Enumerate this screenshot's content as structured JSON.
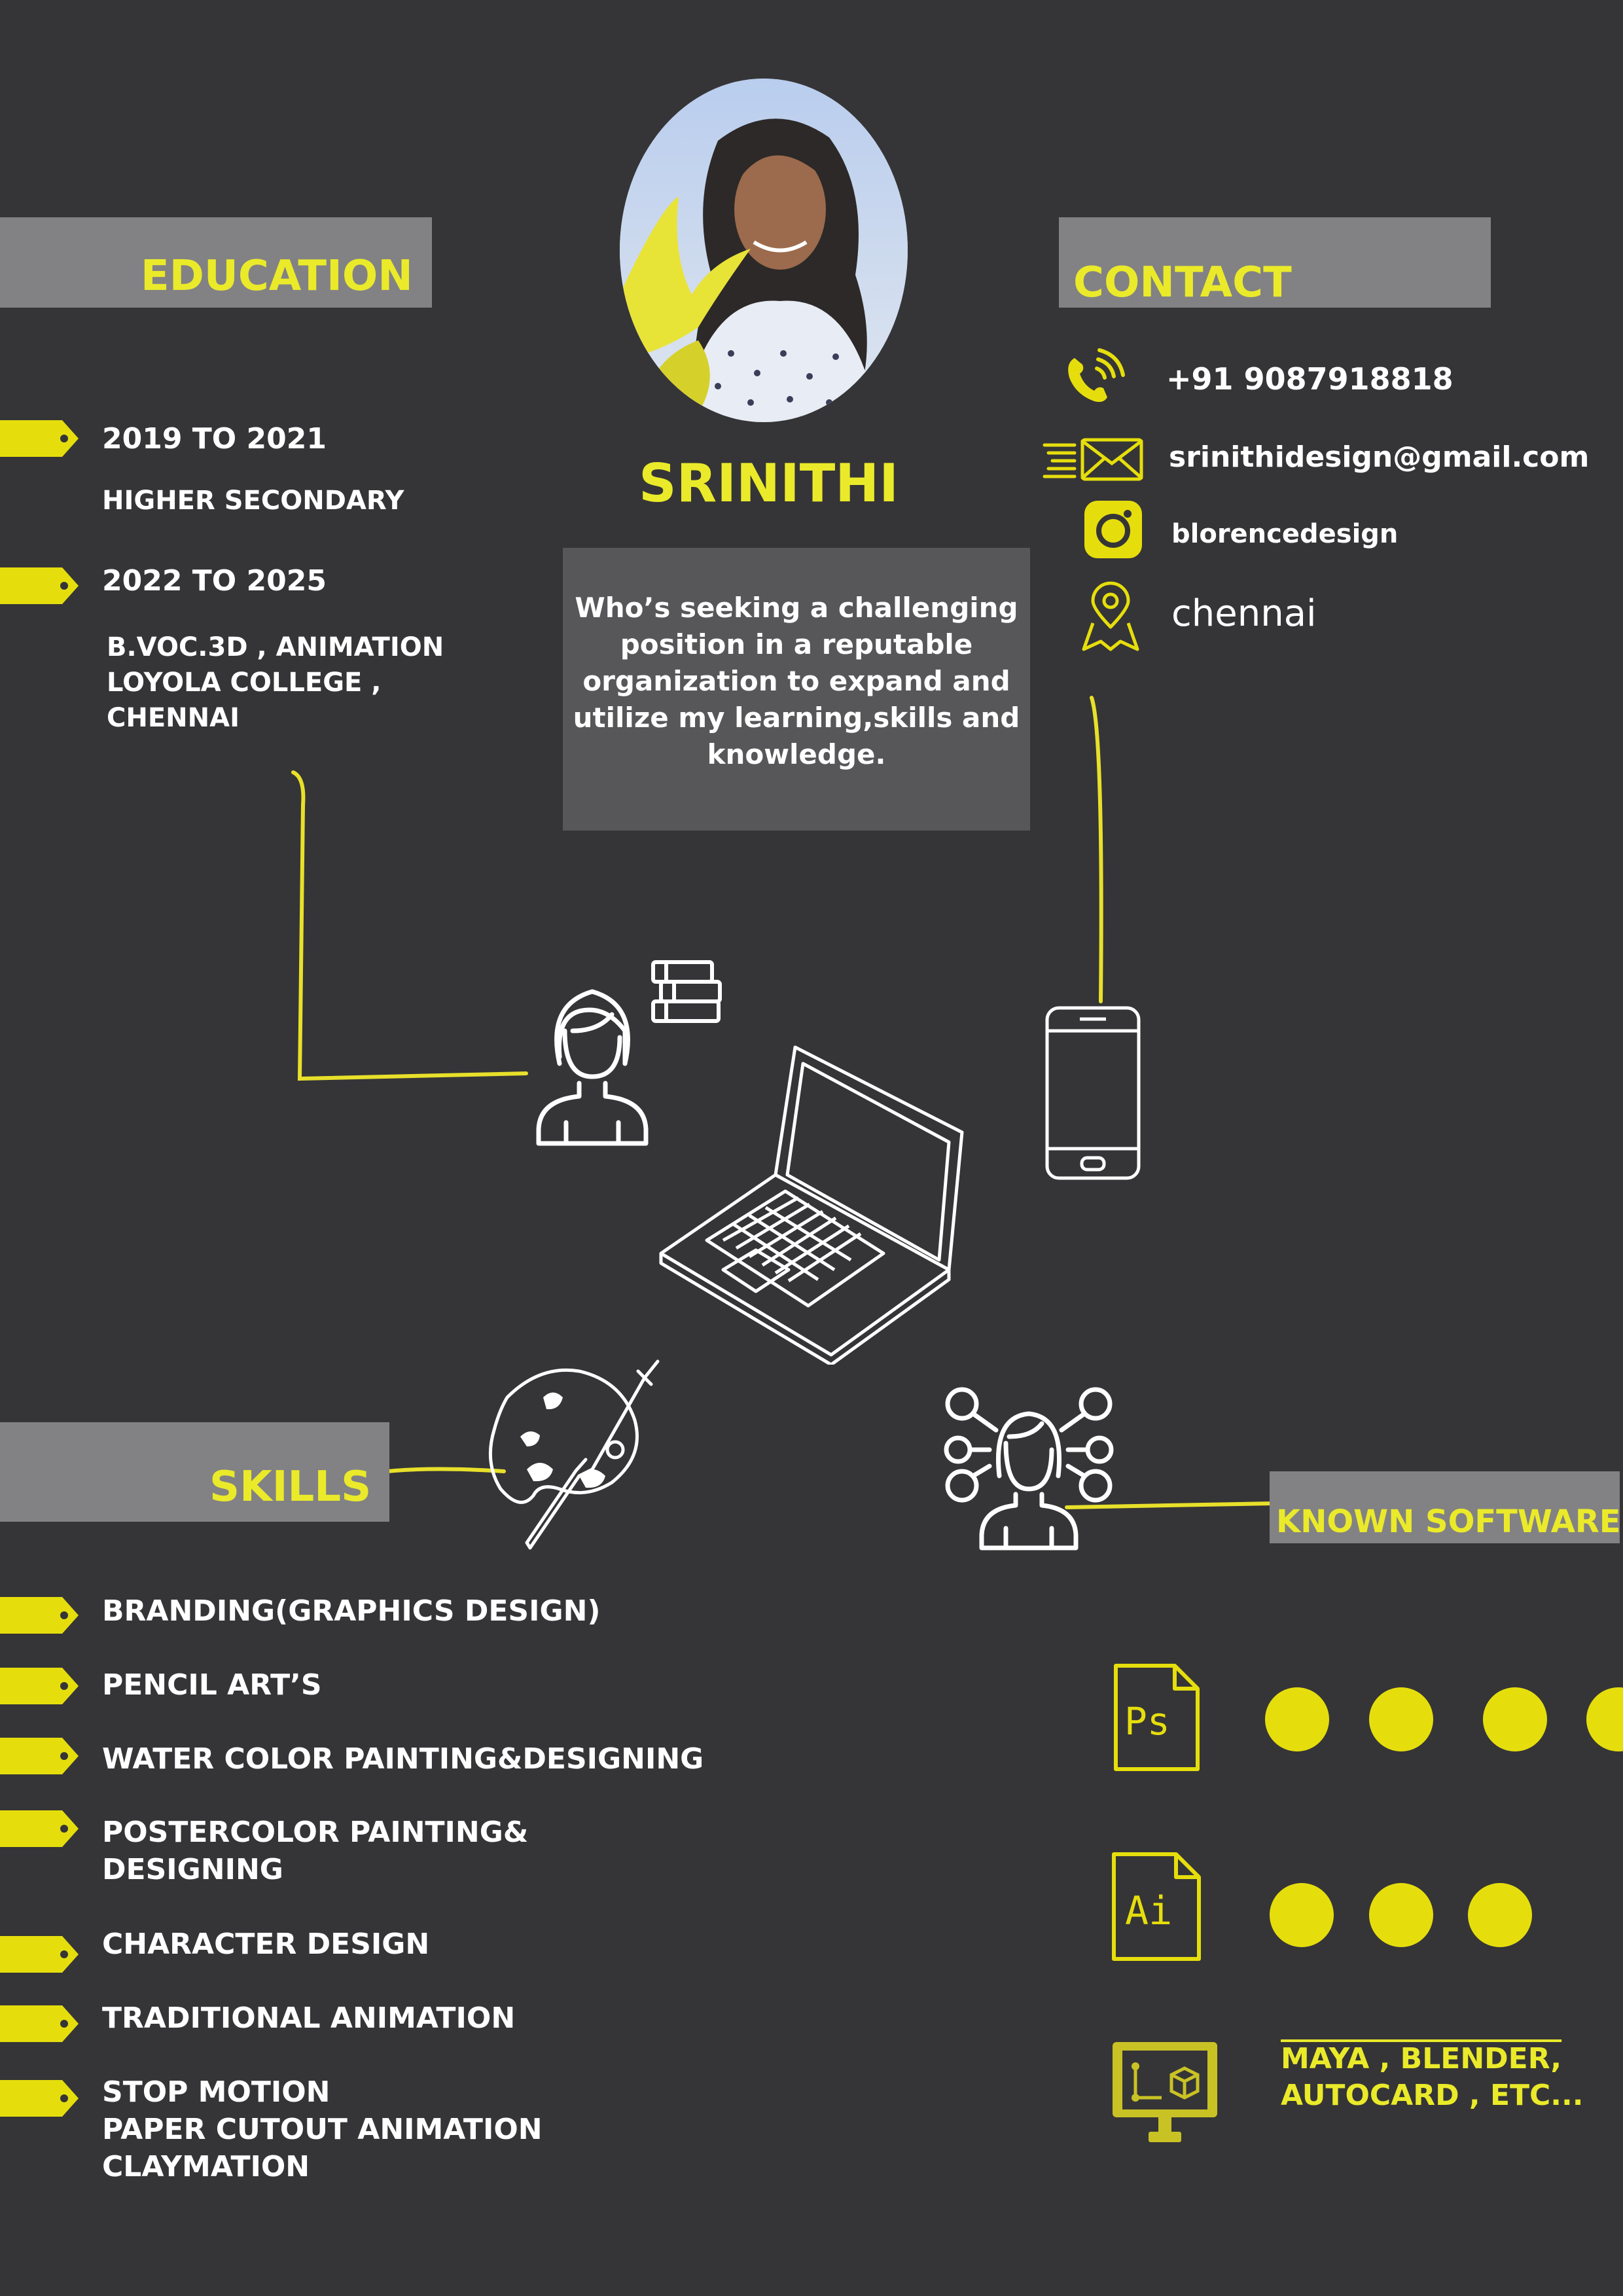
{
  "name": "SRINITHI",
  "objective": "Who’s seeking a challenging position in a reputable organization to expand and utilize my learning,skills and knowledge.",
  "colors": {
    "background": "#353537",
    "accent": "#eaea2a",
    "panel": "#828284",
    "objective_panel": "#575759"
  },
  "education": {
    "title": "EDUCATION",
    "entries": [
      {
        "years": "2019 TO 2021",
        "lines": [
          "HIGHER SECONDARY"
        ]
      },
      {
        "years": "2022 TO 2025",
        "lines": [
          "B.VOC.3D , ANIMATION",
          "LOYOLA COLLEGE ,",
          "CHENNAI"
        ]
      }
    ]
  },
  "contact": {
    "title": "CONTACT",
    "phone": "+91 9087918818",
    "email": "srinithidesign@gmail.com",
    "instagram": "blorencedesign",
    "location": "chennai",
    "icons": [
      "phone-icon",
      "email-icon",
      "instagram-icon",
      "location-icon"
    ]
  },
  "skills": {
    "title": "SKILLS",
    "items": [
      [
        "BRANDING(GRAPHICS DESIGN)"
      ],
      [
        "PENCIL ART’S"
      ],
      [
        "WATER COLOR PAINTING&DESIGNING"
      ],
      [
        "POSTERCOLOR PAINTING&",
        "DESIGNING"
      ],
      [
        "CHARACTER DESIGN"
      ],
      [
        "TRADITIONAL ANIMATION"
      ],
      [
        "STOP MOTION",
        "PAPER CUTOUT ANIMATION",
        "CLAYMATION"
      ]
    ]
  },
  "software": {
    "title": "KNOWN SOFTWARE",
    "items": [
      {
        "icon_text": "Ps",
        "icon": "photoshop-file-icon",
        "rating": 4
      },
      {
        "icon_text": "Ai",
        "icon": "illustrator-file-icon",
        "rating": 3
      }
    ],
    "others_line1": "MAYA , BLENDER,",
    "others_line2": "AUTOCARD , ETC..."
  }
}
